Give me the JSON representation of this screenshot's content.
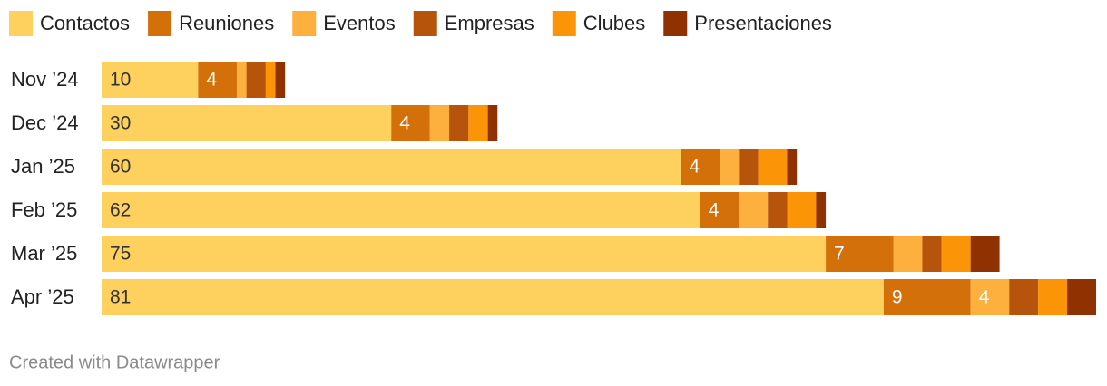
{
  "chart_data": {
    "type": "stacked-bar-horizontal",
    "categories": [
      "Nov ’24",
      "Dec ’24",
      "Jan ’25",
      "Feb ’25",
      "Mar ’25",
      "Apr ’25"
    ],
    "series": [
      {
        "name": "Contactos",
        "color": "#fed05e",
        "values": [
          10,
          30,
          60,
          62,
          75,
          81
        ]
      },
      {
        "name": "Reuniones",
        "color": "#d4700a",
        "values": [
          4,
          4,
          4,
          4,
          7,
          9
        ]
      },
      {
        "name": "Eventos",
        "color": "#fdb03e",
        "values": [
          1,
          2,
          2,
          3,
          3,
          4
        ]
      },
      {
        "name": "Empresas",
        "color": "#b5540a",
        "values": [
          2,
          2,
          2,
          2,
          2,
          3
        ]
      },
      {
        "name": "Clubes",
        "color": "#fb9406",
        "values": [
          1,
          2,
          3,
          3,
          3,
          3
        ]
      },
      {
        "name": "Presentaciones",
        "color": "#8f3100",
        "values": [
          1,
          1,
          1,
          1,
          3,
          3
        ]
      }
    ],
    "footer": "Created with Datawrapper"
  }
}
